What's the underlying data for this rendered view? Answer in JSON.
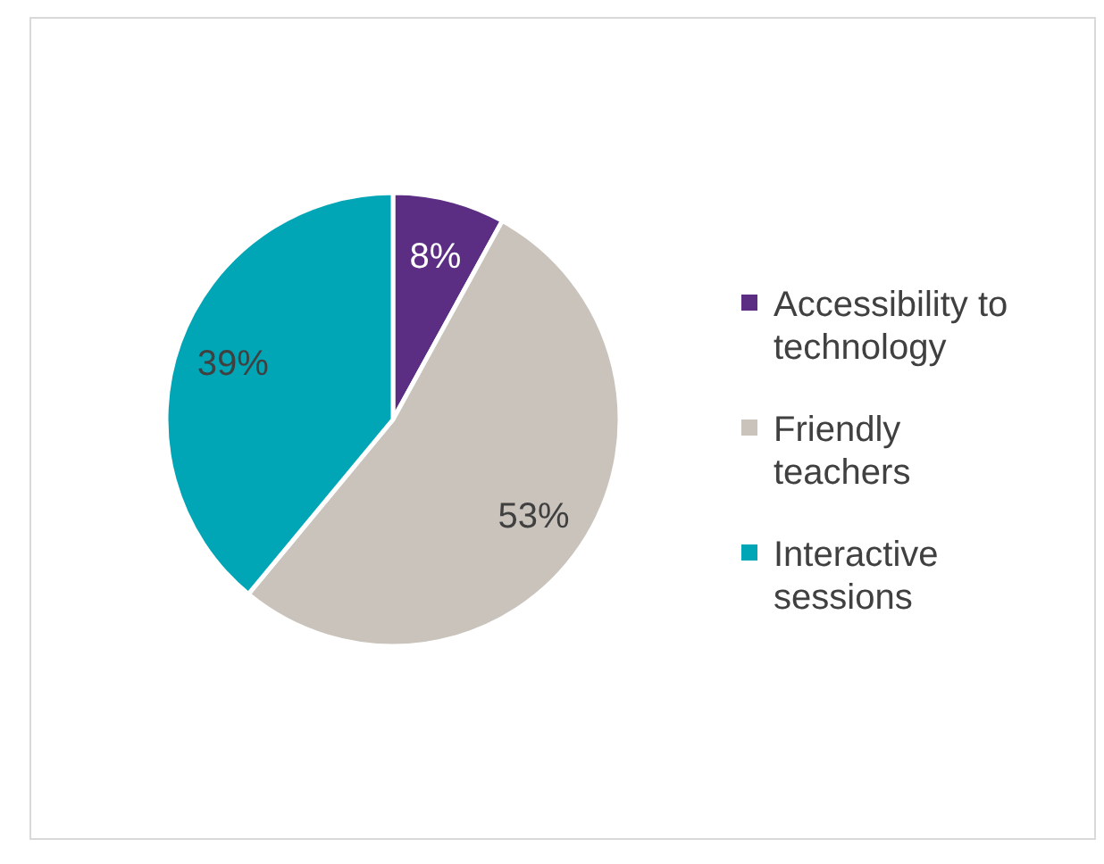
{
  "chart_data": {
    "type": "pie",
    "categories": [
      "Accessibility to technology",
      "Friendly teachers",
      "Interactive sessions"
    ],
    "values": [
      8,
      53,
      39
    ],
    "colors": [
      "#5b2d83",
      "#c9c3bb",
      "#00a6b6"
    ],
    "value_labels": [
      "8%",
      "53%",
      "39%"
    ],
    "legend": "right"
  }
}
